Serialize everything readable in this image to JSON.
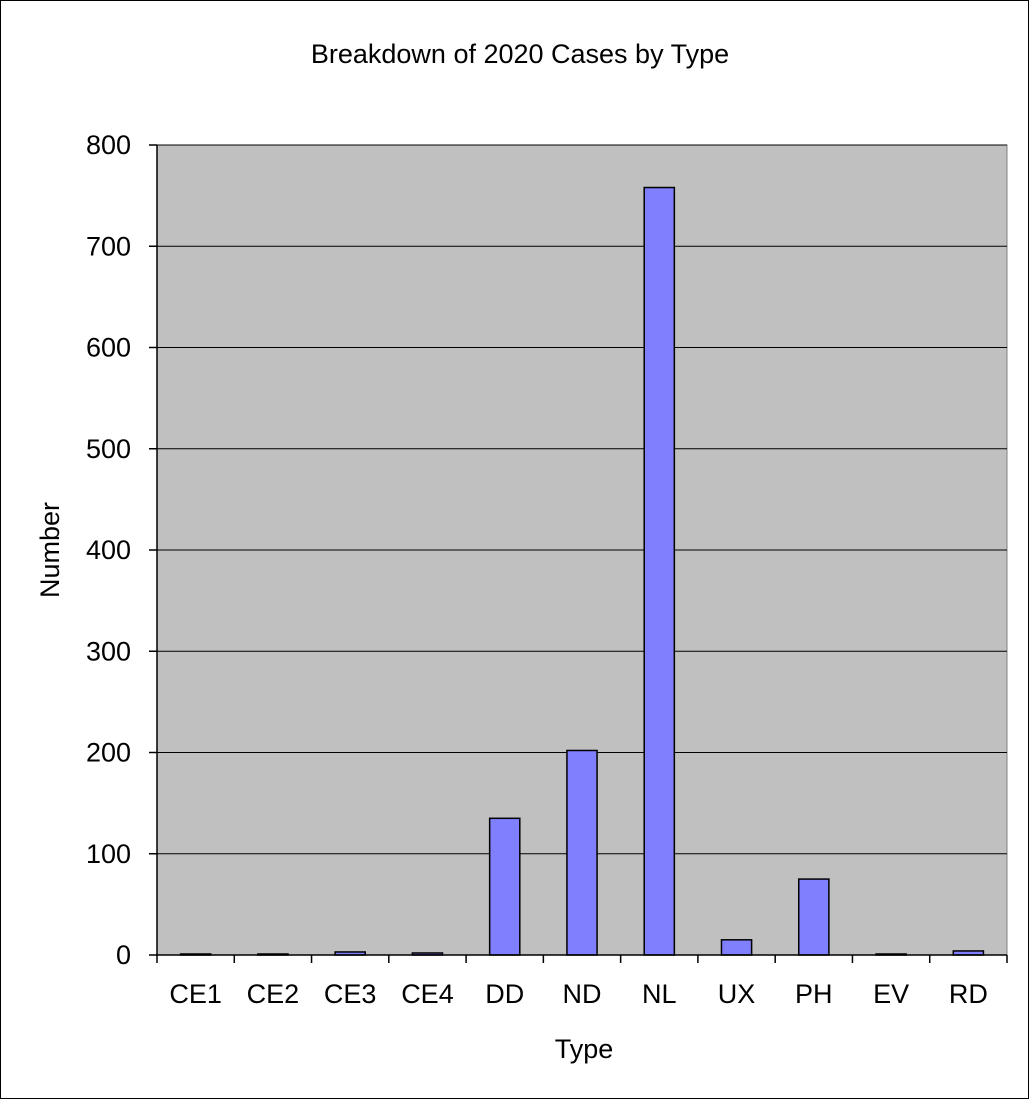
{
  "chart_data": {
    "type": "bar",
    "title": "Breakdown of 2020 Cases by Type",
    "xlabel": "Type",
    "ylabel": "Number",
    "categories": [
      "CE1",
      "CE2",
      "CE3",
      "CE4",
      "DD",
      "ND",
      "NL",
      "UX",
      "PH",
      "EV",
      "RD"
    ],
    "values": [
      1,
      1,
      3,
      2,
      135,
      202,
      758,
      15,
      75,
      1,
      4
    ],
    "ylim": [
      0,
      800
    ],
    "yticks": [
      0,
      100,
      200,
      300,
      400,
      500,
      600,
      700,
      800
    ],
    "grid": true,
    "legend": "none",
    "colors": {
      "bar_fill": "#8080ff",
      "plot_background": "#c0c0c0",
      "gridline": "#000000"
    }
  }
}
